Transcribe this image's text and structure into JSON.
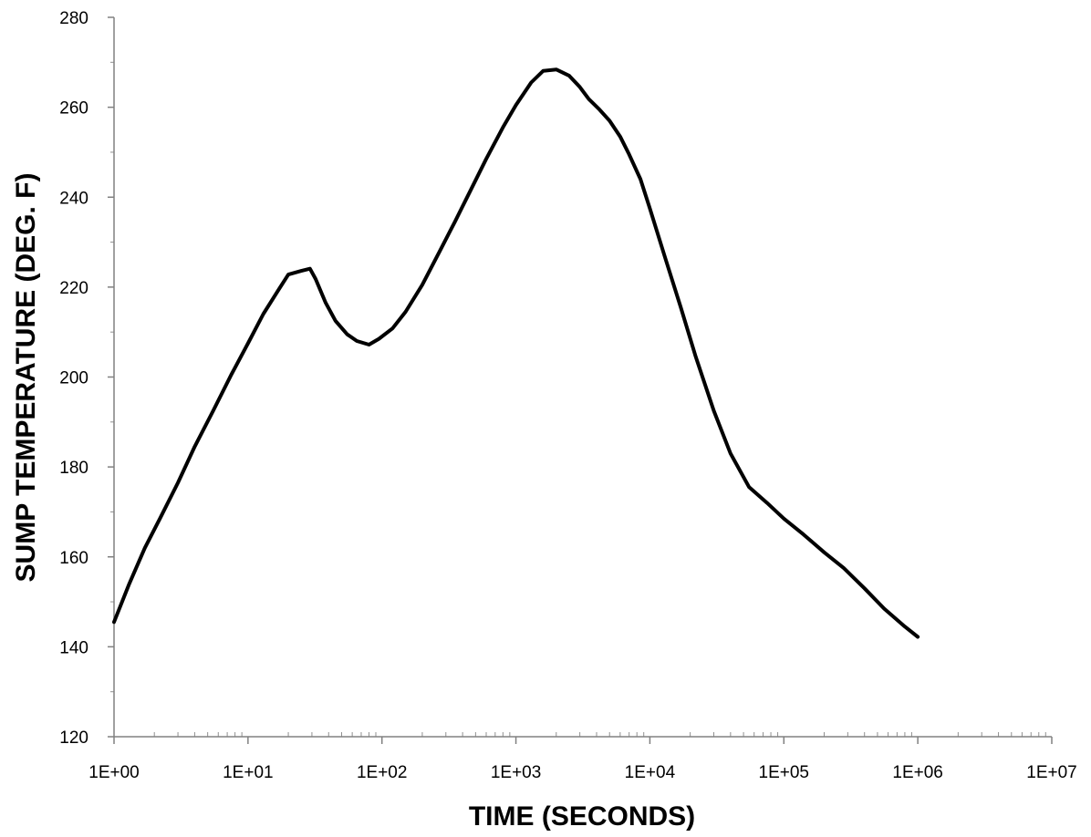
{
  "chart_data": {
    "type": "line",
    "title": "",
    "xlabel": "TIME (SECONDS)",
    "ylabel": "SUMP TEMPERATURE (DEG. F)",
    "x_scale": "log",
    "xlim": [
      1,
      10000000
    ],
    "ylim": [
      120,
      280
    ],
    "grid": false,
    "legend": "none",
    "x_ticks": [
      1,
      10,
      100,
      1000,
      10000,
      100000,
      1000000,
      10000000
    ],
    "x_tick_labels": [
      "1E+00",
      "1E+01",
      "1E+02",
      "1E+03",
      "1E+04",
      "1E+05",
      "1E+06",
      "1E+07"
    ],
    "y_ticks": [
      120,
      140,
      160,
      180,
      200,
      220,
      240,
      260,
      280
    ],
    "y_tick_labels": [
      "120",
      "140",
      "160",
      "180",
      "200",
      "220",
      "240",
      "260",
      "280"
    ],
    "line_color": "#000000",
    "series": [
      {
        "x": [
          1,
          1.3,
          1.7,
          2.2,
          3,
          4,
          5.5,
          7.5,
          10,
          13,
          17,
          20,
          25,
          29,
          32,
          38,
          45,
          55,
          65,
          80,
          95,
          120,
          150,
          200,
          270,
          350,
          450,
          600,
          800,
          1000,
          1300,
          1600,
          2000,
          2500,
          3000,
          3500,
          4200,
          5000,
          6000,
          7000,
          8500,
          10000,
          13000,
          17000,
          22000,
          30000,
          40000,
          55000,
          75000,
          100000,
          140000,
          200000,
          280000,
          400000,
          560000,
          800000,
          1000000
        ],
        "y": [
          145.5,
          154,
          162,
          168.5,
          176.5,
          184.5,
          192.5,
          200.5,
          207.5,
          214,
          219.5,
          222.8,
          223.6,
          224.1,
          221.8,
          216.5,
          212.5,
          209.5,
          208,
          207.2,
          208.5,
          210.8,
          214.5,
          220.5,
          228,
          234.5,
          241,
          248.5,
          255.5,
          260.5,
          265.5,
          268.1,
          268.4,
          267,
          264.5,
          261.8,
          259.5,
          257,
          253.5,
          249.5,
          244,
          237.5,
          226.5,
          215.5,
          204.5,
          192.5,
          183,
          175.5,
          172,
          168.5,
          165,
          161,
          157.5,
          153,
          148.5,
          144.5,
          142.2
        ]
      }
    ]
  }
}
